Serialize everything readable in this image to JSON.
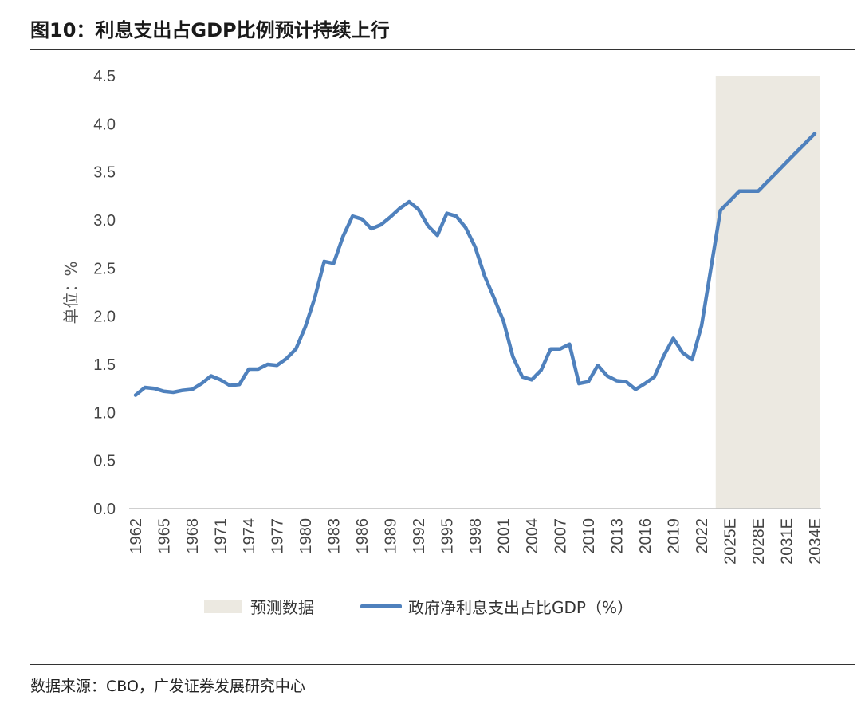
{
  "figure_title": "图10：利息支出占GDP比例预计持续上行",
  "source_text": "数据来源：CBO，广发证券发展研究中心",
  "chart_data": {
    "type": "line",
    "title": "图10：利息支出占GDP比例预计持续上行",
    "ylabel": "单位：%",
    "xlabel": "",
    "ylim": [
      0,
      4.5
    ],
    "yticks": [
      "0.0",
      "0.5",
      "1.0",
      "1.5",
      "2.0",
      "2.5",
      "3.0",
      "3.5",
      "4.0",
      "4.5"
    ],
    "xtick_labels": [
      "1962",
      "1965",
      "1968",
      "1971",
      "1974",
      "1977",
      "1980",
      "1983",
      "1986",
      "1989",
      "1992",
      "1995",
      "1998",
      "2001",
      "2004",
      "2007",
      "2010",
      "2013",
      "2016",
      "2019",
      "2022",
      "2025E",
      "2028E",
      "2031E",
      "2034E"
    ],
    "grid": false,
    "legend_position": "bottom",
    "colors": {
      "line": "#4F81BD",
      "forecast_band": "#ECE9E1"
    },
    "forecast_region": {
      "name": "预测数据",
      "x_start": "2024",
      "x_end": "2034E"
    },
    "series": [
      {
        "name": "政府净利息支出占比GDP（%）",
        "x": [
          "1962",
          "1963",
          "1964",
          "1965",
          "1966",
          "1967",
          "1968",
          "1969",
          "1970",
          "1971",
          "1972",
          "1973",
          "1974",
          "1975",
          "1976",
          "1977",
          "1978",
          "1979",
          "1980",
          "1981",
          "1982",
          "1983",
          "1984",
          "1985",
          "1986",
          "1987",
          "1988",
          "1989",
          "1990",
          "1991",
          "1992",
          "1993",
          "1994",
          "1995",
          "1996",
          "1997",
          "1998",
          "1999",
          "2000",
          "2001",
          "2002",
          "2003",
          "2004",
          "2005",
          "2006",
          "2007",
          "2008",
          "2009",
          "2010",
          "2011",
          "2012",
          "2013",
          "2014",
          "2015",
          "2016",
          "2017",
          "2018",
          "2019",
          "2020",
          "2021",
          "2022",
          "2023",
          "2024",
          "2025E",
          "2026E",
          "2027E",
          "2028E",
          "2029E",
          "2030E",
          "2031E",
          "2032E",
          "2033E",
          "2034E"
        ],
        "values": [
          1.18,
          1.26,
          1.25,
          1.22,
          1.21,
          1.23,
          1.24,
          1.3,
          1.38,
          1.34,
          1.28,
          1.29,
          1.45,
          1.45,
          1.5,
          1.49,
          1.56,
          1.66,
          1.89,
          2.19,
          2.57,
          2.55,
          2.83,
          3.04,
          3.01,
          2.91,
          2.95,
          3.03,
          3.12,
          3.19,
          3.11,
          2.94,
          2.84,
          3.07,
          3.04,
          2.92,
          2.72,
          2.42,
          2.19,
          1.95,
          1.58,
          1.37,
          1.34,
          1.44,
          1.66,
          1.66,
          1.71,
          1.3,
          1.32,
          1.49,
          1.38,
          1.33,
          1.32,
          1.24,
          1.3,
          1.37,
          1.59,
          1.77,
          1.62,
          1.55,
          1.9,
          2.5,
          3.1,
          3.2,
          3.3,
          3.3,
          3.3,
          3.4,
          3.5,
          3.6,
          3.7,
          3.8,
          3.9
        ]
      }
    ]
  }
}
